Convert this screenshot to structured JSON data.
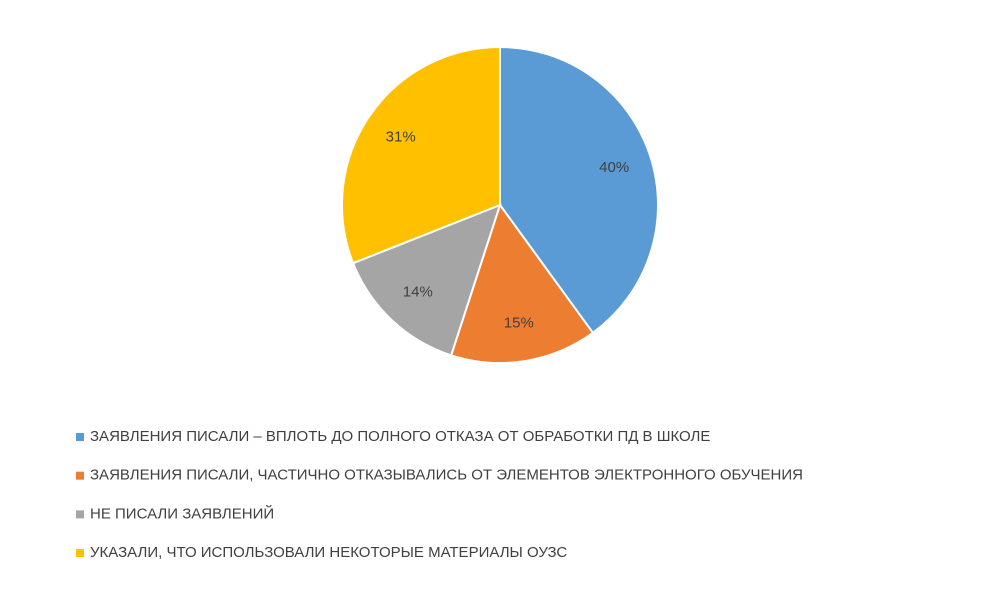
{
  "chart_data": {
    "type": "pie",
    "categories": [
      "ЗАЯВЛЕНИЯ ПИСАЛИ – ВПЛОТЬ ДО ПОЛНОГО ОТКАЗА ОТ ОБРАБОТКИ ПД В ШКОЛЕ",
      "ЗАЯВЛЕНИЯ ПИСАЛИ, ЧАСТИЧНО ОТКАЗЫВАЛИСЬ ОТ ЭЛЕМЕНТОВ ЭЛЕКТРОННОГО ОБУЧЕНИЯ",
      "НЕ ПИСАЛИ ЗАЯВЛЕНИЙ",
      "УКАЗАЛИ, ЧТО ИСПОЛЬЗОВАЛИ НЕКОТОРЫЕ МАТЕРИАЛЫ ОУЗС"
    ],
    "values": [
      40,
      15,
      14,
      31
    ],
    "value_labels": [
      "40%",
      "15%",
      "14%",
      "31%"
    ],
    "colors": [
      "#5b9bd5",
      "#ed7d31",
      "#a5a5a5",
      "#ffc000"
    ],
    "legend": "bottom"
  }
}
